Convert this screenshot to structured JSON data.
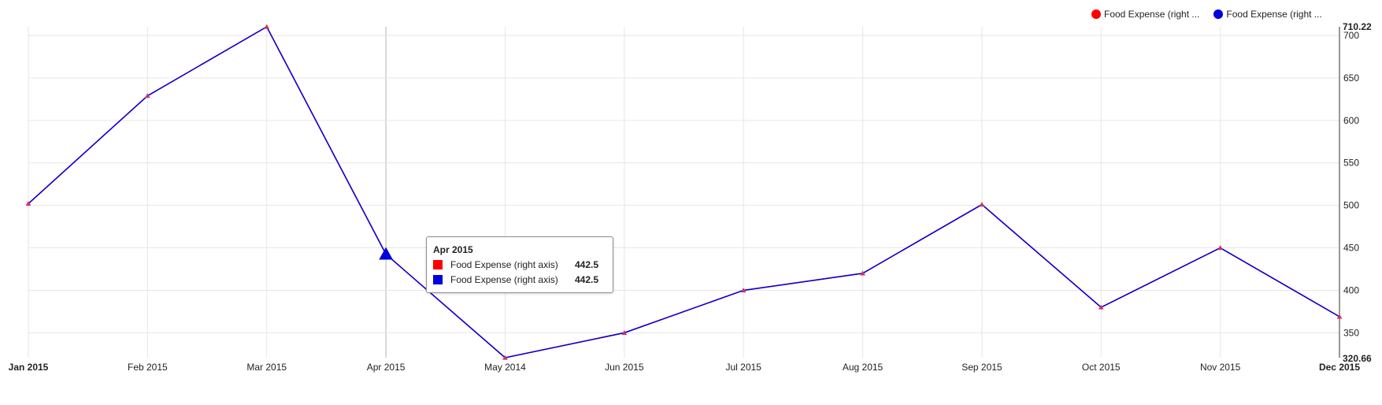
{
  "colors": {
    "series1": "#ff0000",
    "series2": "#0000dd",
    "grid": "#e6e6e6",
    "axis": "#333333",
    "marker": "#cc3366",
    "hover_line": "#cccccc"
  },
  "legend": {
    "items": [
      {
        "label": "Food Expense (right ...",
        "color": "#ff0000"
      },
      {
        "label": "Food Expense (right ...",
        "color": "#0000dd"
      }
    ]
  },
  "tooltip": {
    "title": "Apr 2015",
    "rows": [
      {
        "label": "Food Expense (right axis)",
        "value": "442.5",
        "color": "#ff0000"
      },
      {
        "label": "Food Expense (right axis)",
        "value": "442.5",
        "color": "#0000dd"
      }
    ]
  },
  "chart_data": {
    "type": "line",
    "categories": [
      "Jan 2015",
      "Feb 2015",
      "Mar 2015",
      "Apr 2015",
      "May 2014",
      "Jun 2015",
      "Jul 2015",
      "Aug 2015",
      "Sep 2015",
      "Oct 2015",
      "Nov 2015",
      "Dec 2015"
    ],
    "series": [
      {
        "name": "Food Expense (right axis)",
        "values": [
          502,
          629,
          710.22,
          442.5,
          320.66,
          350,
          400,
          420,
          501,
          380,
          450,
          369
        ]
      },
      {
        "name": "Food Expense (right axis)",
        "values": [
          502,
          629,
          710.22,
          442.5,
          320.66,
          350,
          400,
          420,
          501,
          380,
          450,
          369
        ]
      }
    ],
    "y_axis_side": "right",
    "ylim": [
      320.66,
      710.22
    ],
    "yticks": [
      "350",
      "400",
      "450",
      "500",
      "550",
      "600",
      "650",
      "700"
    ],
    "ymin_label": "320.66",
    "ymax_label": "710.22",
    "bold_x_labels": [
      "Jan 2015",
      "Dec 2015"
    ],
    "highlighted_category": "Apr 2015",
    "grid": true,
    "legend_position": "top-right"
  }
}
